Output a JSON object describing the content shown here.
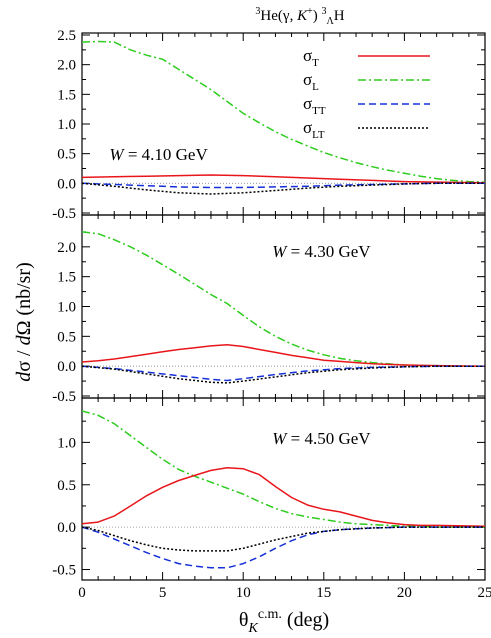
{
  "chart_data": {
    "type": "line",
    "title_parts": {
      "pre": "3",
      "a": "He(",
      "gamma": "γ",
      "b": ", ",
      "K": "K",
      "plus": "+",
      "c": ") ",
      "sup3": "3",
      "sub": "Λ",
      "H": "H"
    },
    "ylabel_parts": {
      "a": "d",
      "sigma": "σ",
      "slash": " / ",
      "d": "d",
      "Omega": "Ω",
      "unit": "(nb/sr)"
    },
    "xlabel_parts": {
      "theta": "θ",
      "K": "K",
      "sup": "c.m.",
      "unit": " (deg)"
    },
    "xlim": [
      0,
      25
    ],
    "xticks": [
      "0",
      "5",
      "10",
      "15",
      "20",
      "25"
    ],
    "legend": {
      "placement": "top-right of top panel",
      "items": [
        {
          "key": "T",
          "sym": "σ",
          "sub": "T",
          "color": "#e8161b",
          "dash": ""
        },
        {
          "key": "L",
          "sym": "σ",
          "sub": "L",
          "color": "#2ecc1f",
          "dash": "8,3,2,3"
        },
        {
          "key": "TT",
          "sym": "σ",
          "sub": "TT",
          "color": "#1530d8",
          "dash": "7,4"
        },
        {
          "key": "LT",
          "sym": "σ",
          "sub": "LT",
          "color": "#000000",
          "dash": "2,2"
        }
      ]
    },
    "panels": [
      {
        "label_W": "W",
        "label_rest": " = 4.10 GeV",
        "ylim": [
          -0.5,
          2.5
        ],
        "yticks": [
          "-0.5",
          "0.0",
          "0.5",
          "1.0",
          "1.5",
          "2.0",
          "2.5"
        ],
        "series": {
          "T": {
            "x": [
              0,
              2,
              4,
              6,
              8,
              10,
              12,
              14,
              16,
              18,
              20,
              22,
              25
            ],
            "y": [
              0.1,
              0.11,
              0.12,
              0.13,
              0.14,
              0.13,
              0.11,
              0.09,
              0.07,
              0.05,
              0.03,
              0.02,
              0.01
            ]
          },
          "L": {
            "x": [
              0,
              1,
              2,
              3,
              4,
              5,
              6,
              7,
              8,
              9,
              10,
              11,
              12,
              13,
              14,
              15,
              16,
              17,
              18,
              19,
              20,
              21,
              22,
              23,
              24,
              25
            ],
            "y": [
              2.38,
              2.39,
              2.38,
              2.25,
              2.16,
              2.09,
              1.92,
              1.75,
              1.58,
              1.38,
              1.18,
              1.02,
              0.87,
              0.74,
              0.63,
              0.52,
              0.43,
              0.35,
              0.28,
              0.22,
              0.17,
              0.12,
              0.08,
              0.05,
              0.03,
              0.02
            ]
          },
          "TT": {
            "x": [
              0,
              2,
              4,
              6,
              8,
              10,
              12,
              14,
              16,
              18,
              20,
              22,
              25
            ],
            "y": [
              0.0,
              -0.02,
              -0.04,
              -0.06,
              -0.07,
              -0.07,
              -0.06,
              -0.05,
              -0.03,
              -0.02,
              -0.01,
              0.0,
              0.0
            ]
          },
          "LT": {
            "x": [
              0,
              2,
              4,
              6,
              8,
              10,
              12,
              14,
              16,
              18,
              20,
              22,
              25
            ],
            "y": [
              0.0,
              -0.05,
              -0.11,
              -0.16,
              -0.18,
              -0.16,
              -0.12,
              -0.08,
              -0.05,
              -0.03,
              -0.01,
              0.0,
              0.0
            ]
          }
        }
      },
      {
        "label_W": "W",
        "label_rest": " = 4.30 GeV",
        "ylim": [
          -0.5,
          2.5
        ],
        "yticks": [
          "-0.5",
          "0.0",
          "0.5",
          "1.0",
          "1.5",
          "2.0"
        ],
        "series": {
          "T": {
            "x": [
              0,
              1,
              2,
              3,
              4,
              5,
              6,
              7,
              8,
              9,
              10,
              11,
              12,
              13,
              14,
              15,
              16,
              17,
              18,
              19,
              20,
              22,
              25
            ],
            "y": [
              0.07,
              0.09,
              0.12,
              0.16,
              0.2,
              0.24,
              0.28,
              0.31,
              0.34,
              0.36,
              0.33,
              0.28,
              0.23,
              0.18,
              0.14,
              0.1,
              0.08,
              0.06,
              0.04,
              0.03,
              0.02,
              0.01,
              0.0
            ]
          },
          "L": {
            "x": [
              0,
              1,
              2,
              3,
              4,
              5,
              6,
              7,
              8,
              9,
              10,
              11,
              12,
              13,
              14,
              15,
              16,
              17,
              18,
              19,
              20,
              21,
              22,
              23,
              24,
              25
            ],
            "y": [
              2.25,
              2.22,
              2.12,
              2.0,
              1.86,
              1.7,
              1.54,
              1.37,
              1.2,
              1.05,
              0.85,
              0.66,
              0.5,
              0.37,
              0.27,
              0.19,
              0.13,
              0.09,
              0.06,
              0.04,
              0.02,
              0.01,
              0.01,
              0.0,
              0.0,
              0.0
            ]
          },
          "TT": {
            "x": [
              0,
              2,
              4,
              6,
              8,
              9,
              10,
              12,
              14,
              16,
              18,
              20,
              22,
              25
            ],
            "y": [
              0.0,
              -0.04,
              -0.1,
              -0.16,
              -0.22,
              -0.24,
              -0.21,
              -0.14,
              -0.08,
              -0.04,
              -0.02,
              -0.01,
              0.0,
              0.0
            ]
          },
          "LT": {
            "x": [
              0,
              2,
              4,
              6,
              8,
              9,
              10,
              12,
              14,
              16,
              18,
              20,
              22,
              25
            ],
            "y": [
              0.0,
              -0.05,
              -0.13,
              -0.21,
              -0.27,
              -0.28,
              -0.25,
              -0.18,
              -0.11,
              -0.06,
              -0.03,
              -0.01,
              0.0,
              0.0
            ]
          }
        }
      },
      {
        "label_W": "W",
        "label_rest": " = 4.50 GeV",
        "ylim": [
          -0.6,
          1.5
        ],
        "yticks": [
          "-0.5",
          "0.0",
          "0.5",
          "1.0"
        ],
        "series": {
          "T": {
            "x": [
              0,
              1,
              2,
              3,
              4,
              5,
              6,
              7,
              8,
              9,
              10,
              11,
              12,
              13,
              14,
              15,
              16,
              17,
              18,
              19,
              20,
              21,
              22,
              25
            ],
            "y": [
              0.04,
              0.06,
              0.13,
              0.25,
              0.37,
              0.47,
              0.55,
              0.61,
              0.67,
              0.7,
              0.69,
              0.62,
              0.48,
              0.35,
              0.26,
              0.21,
              0.18,
              0.13,
              0.08,
              0.05,
              0.03,
              0.02,
              0.02,
              0.01
            ]
          },
          "L": {
            "x": [
              0,
              1,
              2,
              3,
              4,
              5,
              6,
              7,
              8,
              9,
              10,
              11,
              12,
              13,
              14,
              15,
              16,
              17,
              18,
              19,
              20,
              21,
              22,
              23,
              24,
              25
            ],
            "y": [
              1.37,
              1.32,
              1.22,
              1.08,
              0.94,
              0.8,
              0.68,
              0.6,
              0.53,
              0.46,
              0.39,
              0.3,
              0.22,
              0.16,
              0.12,
              0.09,
              0.06,
              0.04,
              0.03,
              0.02,
              0.01,
              0.01,
              0.0,
              0.0,
              0.0,
              0.0
            ]
          },
          "TT": {
            "x": [
              0,
              1,
              2,
              3,
              4,
              5,
              6,
              7,
              8,
              9,
              10,
              11,
              12,
              13,
              14,
              15,
              16,
              17,
              18,
              20,
              22,
              25
            ],
            "y": [
              0.0,
              -0.06,
              -0.14,
              -0.22,
              -0.3,
              -0.37,
              -0.43,
              -0.46,
              -0.48,
              -0.48,
              -0.43,
              -0.35,
              -0.25,
              -0.16,
              -0.09,
              -0.05,
              -0.03,
              -0.02,
              -0.01,
              0.0,
              0.0,
              0.0
            ]
          },
          "LT": {
            "x": [
              0,
              1,
              2,
              3,
              4,
              5,
              6,
              7,
              8,
              9,
              10,
              11,
              12,
              13,
              14,
              15,
              16,
              17,
              18,
              20,
              22,
              25
            ],
            "y": [
              0.0,
              -0.04,
              -0.1,
              -0.16,
              -0.21,
              -0.25,
              -0.27,
              -0.28,
              -0.28,
              -0.28,
              -0.25,
              -0.2,
              -0.15,
              -0.11,
              -0.07,
              -0.05,
              -0.03,
              -0.02,
              -0.01,
              0.0,
              0.0,
              0.0
            ]
          }
        }
      }
    ]
  }
}
